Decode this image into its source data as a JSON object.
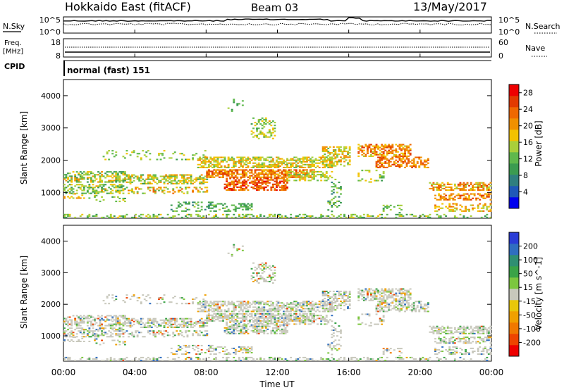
{
  "header": {
    "title": "Hokkaido East (fitACF)",
    "beam": "Beam 03",
    "date": "13/May/2017"
  },
  "labels": {
    "nsky": "N.Sky",
    "nsearch": "N.Search",
    "freq": "Freq.",
    "freq_unit": "[MHz]",
    "nave": "Nave",
    "cpid": "CPID",
    "program": "normal (fast) 151"
  },
  "noise_axis": {
    "top_left": "10^5",
    "bottom_left": "10^0",
    "top_right": "10^5",
    "bottom_right": "10^0"
  },
  "freq_axis": {
    "left_ticks": [
      "18",
      "8"
    ],
    "right_ticks": [
      "60",
      "0"
    ]
  },
  "colors": {
    "power": [
      "#0000ee",
      "#1f58b8",
      "#2f7f7f",
      "#3b9b50",
      "#5fb84c",
      "#a9cf3a",
      "#f2c200",
      "#f09000",
      "#ef6800",
      "#e23a00",
      "#ee0000"
    ],
    "velocity": [
      "#2a3dd6",
      "#2f6ec0",
      "#2f8f72",
      "#3aa347",
      "#7cc63e",
      "#c8c8bc",
      "#e8c60a",
      "#f0a000",
      "#f07800",
      "#ee4400",
      "#ee0000"
    ]
  },
  "chart_data": [
    {
      "type": "heatmap",
      "name": "Power",
      "ylabel": "Slant Range [km]",
      "xlabel": "",
      "y_ticks": [
        1000,
        2000,
        3000,
        4000
      ],
      "ylim": [
        200,
        4500
      ],
      "x_ticks": [
        "00:00",
        "04:00",
        "08:00",
        "12:00",
        "16:00",
        "20:00",
        "00:00"
      ],
      "xlim_hours": [
        0,
        24
      ],
      "colorbar": {
        "label": "Power [dB]",
        "ticks": [
          4,
          8,
          12,
          16,
          20,
          24,
          28
        ],
        "range": [
          0,
          30
        ]
      }
    },
    {
      "type": "heatmap",
      "name": "Velocity",
      "ylabel": "Slant Range [km]",
      "xlabel": "Time UT",
      "y_ticks": [
        1000,
        2000,
        3000,
        4000
      ],
      "ylim": [
        200,
        4500
      ],
      "x_ticks": [
        "00:00",
        "04:00",
        "08:00",
        "12:00",
        "16:00",
        "20:00",
        "00:00"
      ],
      "xlim_hours": [
        0,
        24
      ],
      "colorbar": {
        "label": "Velocity [m s^-1]",
        "ticks": [
          200,
          100,
          50,
          15,
          -15,
          -50,
          -100,
          -200
        ]
      }
    }
  ]
}
